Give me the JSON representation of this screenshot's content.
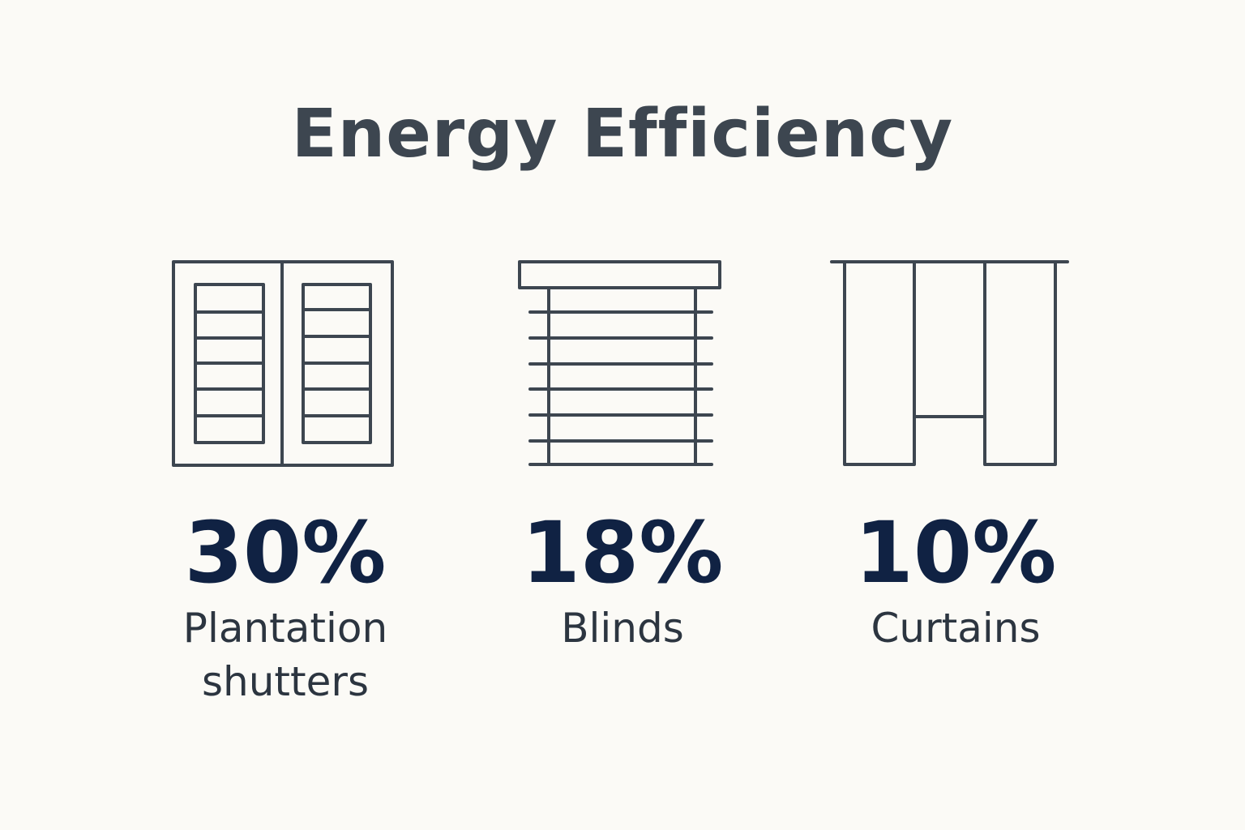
{
  "title": "Energy Efficiency",
  "items": [
    {
      "stat": "30%",
      "label": "Plantation shutters"
    },
    {
      "stat": "18%",
      "label": "Blinds"
    },
    {
      "stat": "10%",
      "label": "Curtains"
    }
  ]
}
